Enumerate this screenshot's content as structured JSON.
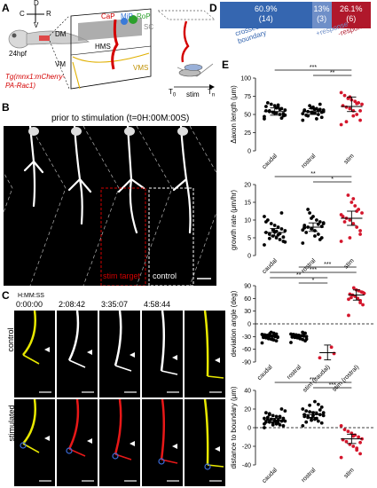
{
  "panelA": {
    "label": "A",
    "axis_d": "D",
    "axis_c": "C",
    "axis_r": "R",
    "axis_v": "V",
    "age": "24hpf",
    "line_name_1": "Tg(mnx1:mCherry-",
    "line_name_2": "PA-Rac1)",
    "dm": "DM",
    "vm": "VM",
    "hms": "HMS",
    "vms": "VMS",
    "cap": "CaP",
    "mip": "MiP",
    "rop": "RoP",
    "sc": "SC",
    "t0": "T",
    "t0_sub": "0",
    "tn": "T",
    "tn_sub": "n",
    "stim": "stim"
  },
  "panelB": {
    "label": "B",
    "title": "prior to stimulation (t=0H:00M:00S)",
    "stim_target": "stim target",
    "control": "control"
  },
  "panelC": {
    "label": "C",
    "time_header": "H:MM:SS",
    "times": [
      "0:00:00",
      "2:08:42",
      "3:35:07",
      "4:58:44"
    ],
    "row_control": "control",
    "row_stimulated": "stimulated"
  },
  "panelD": {
    "label": "D",
    "segments": [
      {
        "pct": "60.9%",
        "n": "(14)",
        "value": 60.9,
        "color": "#3566b0",
        "label": "crossed boundary"
      },
      {
        "pct": "13%",
        "n": "(3)",
        "value": 13.0,
        "color": "#6f8fc8",
        "label": "+response"
      },
      {
        "pct": "26.1%",
        "n": "(6)",
        "value": 26.1,
        "color": "#b0182b",
        "label": "-response"
      }
    ]
  },
  "panelE": {
    "label": "E",
    "colors": {
      "control": "#000000",
      "stim": "#d4162c"
    },
    "charts": [
      {
        "type": "scatter",
        "ylabel": "Δaxon length (μm)",
        "categories": [
          "caudal",
          "rostral",
          "stim"
        ],
        "ylim": [
          0,
          100
        ],
        "yticks": [
          0,
          25,
          50,
          75,
          100
        ],
        "means": [
          54,
          54,
          61
        ],
        "ci": [
          [
            49,
            59
          ],
          [
            50,
            58
          ],
          [
            54,
            74
          ]
        ],
        "sig": [
          {
            "a": 1,
            "b": 2,
            "label": "**"
          },
          {
            "a": 0,
            "b": 2,
            "label": "***"
          }
        ],
        "points": [
          [
            44,
            48,
            50,
            52,
            53,
            54,
            55,
            56,
            58,
            60,
            62,
            64,
            66,
            47,
            51,
            57,
            59,
            53,
            55,
            61,
            49,
            45,
            63,
            52
          ],
          [
            42,
            46,
            50,
            52,
            53,
            54,
            55,
            56,
            57,
            58,
            60,
            62,
            49,
            51,
            53,
            55,
            57,
            59,
            48,
            56,
            54,
            64,
            44,
            52
          ],
          [
            36,
            42,
            50,
            55,
            58,
            60,
            62,
            64,
            66,
            68,
            70,
            72,
            76,
            80,
            55,
            65,
            48,
            74,
            40
          ]
        ]
      },
      {
        "type": "scatter",
        "ylabel": "growth rate (μm/hr)",
        "categories": [
          "caudal",
          "rostral",
          "stim"
        ],
        "ylim": [
          0,
          20
        ],
        "yticks": [
          0,
          5,
          10,
          15,
          20
        ],
        "means": [
          6.5,
          8.0,
          10.5
        ],
        "ci": [
          [
            5.5,
            7.6
          ],
          [
            6.8,
            9.2
          ],
          [
            8.5,
            12.5
          ]
        ],
        "sig": [
          {
            "a": 1,
            "b": 2,
            "label": "*"
          },
          {
            "a": 0,
            "b": 2,
            "label": "**"
          }
        ],
        "points": [
          [
            3,
            4,
            4.5,
            5,
            5.5,
            6,
            6.5,
            7,
            7.5,
            8,
            8.5,
            9,
            10,
            11,
            5.2,
            6.2,
            6.8,
            7.2,
            4.8,
            9.5,
            3.8,
            12,
            5.8,
            6.6
          ],
          [
            3.5,
            5,
            6,
            7,
            7.5,
            8,
            8.5,
            9,
            9.5,
            10,
            11,
            12,
            6.5,
            7.2,
            8.2,
            8.8,
            5.5,
            10.5,
            13,
            7.8,
            9.2,
            4.5
          ],
          [
            4,
            6,
            8,
            9,
            10,
            10.5,
            11,
            12,
            13,
            14,
            15,
            17,
            9.5,
            11.5,
            7,
            12.5,
            16,
            5
          ]
        ]
      },
      {
        "type": "scatter",
        "ylabel": "deviation angle (deg)",
        "categories": [
          "caudal",
          "rostral",
          "stim (caudal)",
          "stim (rostral)"
        ],
        "ylim": [
          -90,
          90
        ],
        "yticks": [
          -90,
          -60,
          -30,
          0,
          30,
          60,
          90
        ],
        "means": [
          -30,
          -30,
          -68,
          68
        ],
        "ci": [
          [
            -34,
            -26
          ],
          [
            -34,
            -26
          ],
          [
            -85,
            -50
          ],
          [
            56,
            80
          ]
        ],
        "refline": 0,
        "sig": [
          {
            "a": 1,
            "b": 2,
            "label": "*"
          },
          {
            "a": 0,
            "b": 2,
            "label": "**"
          },
          {
            "a": 0,
            "b": 3,
            "label": "***"
          },
          {
            "a": 1,
            "b": 3,
            "label": "***"
          }
        ],
        "points": [
          [
            -45,
            -40,
            -38,
            -36,
            -34,
            -33,
            -32,
            -31,
            -30,
            -29,
            -28,
            -27,
            -26,
            -25,
            -24,
            -22,
            -20,
            -35,
            -30,
            -28,
            -32,
            -26,
            -37,
            -23
          ],
          [
            -44,
            -40,
            -37,
            -35,
            -33,
            -32,
            -31,
            -30,
            -29,
            -28,
            -27,
            -26,
            -25,
            -24,
            -22,
            -20,
            -34,
            -30,
            -28,
            -31,
            -36,
            -23
          ],
          [
            -80,
            -70,
            -55
          ],
          [
            20,
            45,
            55,
            60,
            65,
            68,
            70,
            72,
            75,
            78,
            80,
            85,
            62,
            58,
            74,
            50
          ]
        ]
      },
      {
        "type": "scatter",
        "ylabel": "distance to boundary (μm)",
        "categories": [
          "caudal",
          "rostral",
          "stim"
        ],
        "ylim": [
          -40,
          40
        ],
        "yticks": [
          -40,
          -20,
          0,
          20,
          40
        ],
        "means": [
          8,
          14,
          -12
        ],
        "ci": [
          [
            6,
            10
          ],
          [
            11,
            17
          ],
          [
            -17,
            -7
          ]
        ],
        "refline": 0,
        "sig": [
          {
            "a": 1,
            "b": 2,
            "label": "***"
          },
          {
            "a": 0,
            "b": 2,
            "label": "***"
          }
        ],
        "points": [
          [
            0,
            2,
            3,
            4,
            5,
            6,
            6,
            7,
            7,
            8,
            8,
            9,
            9,
            10,
            10,
            11,
            12,
            13,
            14,
            16,
            18,
            20,
            5,
            7,
            9,
            11,
            4,
            8,
            12,
            6,
            3,
            15
          ],
          [
            2,
            5,
            7,
            9,
            10,
            11,
            12,
            13,
            14,
            15,
            16,
            17,
            18,
            20,
            22,
            25,
            28,
            8,
            12,
            14,
            16,
            19,
            10,
            13,
            24,
            6
          ],
          [
            -32,
            -28,
            -24,
            -20,
            -18,
            -15,
            -13,
            -12,
            -10,
            -8,
            -6,
            -4,
            -2,
            2,
            -16,
            -22,
            -9
          ]
        ]
      }
    ]
  }
}
